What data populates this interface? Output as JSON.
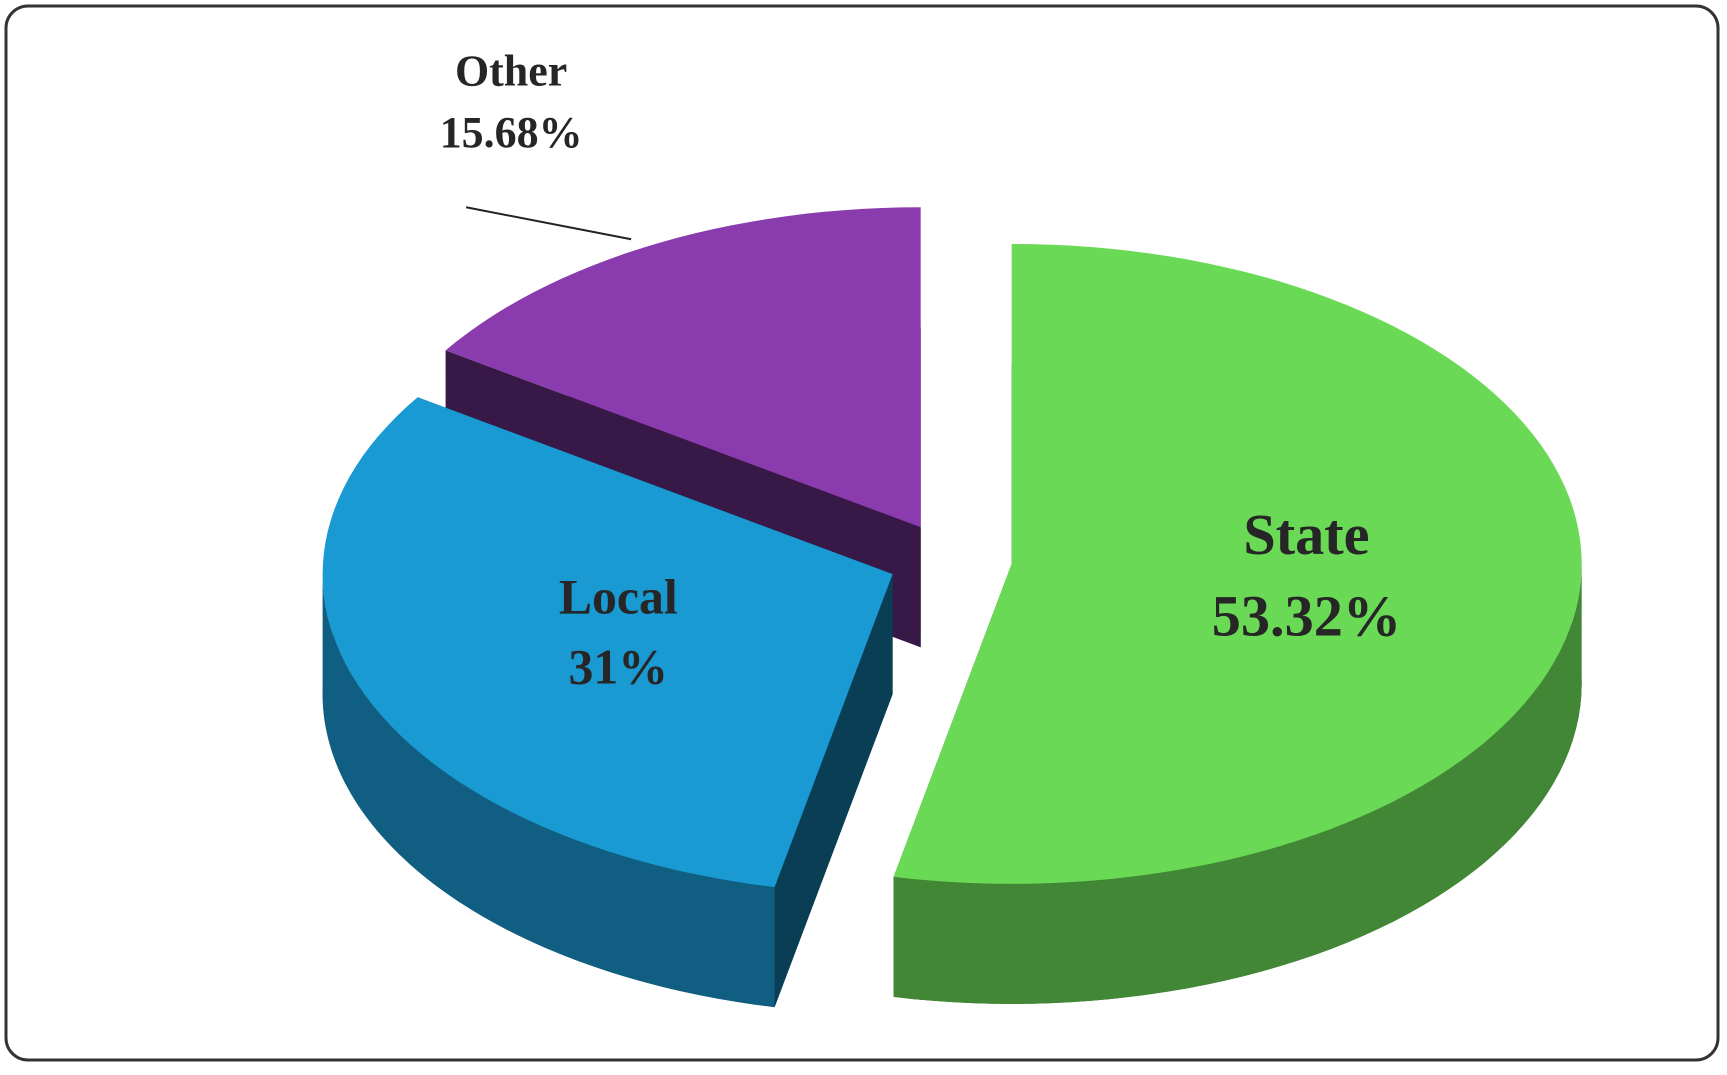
{
  "chart_data": {
    "type": "pie3d",
    "categories": [
      "State",
      "Local",
      "Other"
    ],
    "values": [
      53.32,
      31,
      15.68
    ],
    "value_labels": [
      "53.32%",
      "31%",
      "15.68%"
    ],
    "colors": [
      "#6ad955",
      "#1a9ad2",
      "#8a3cae"
    ]
  }
}
